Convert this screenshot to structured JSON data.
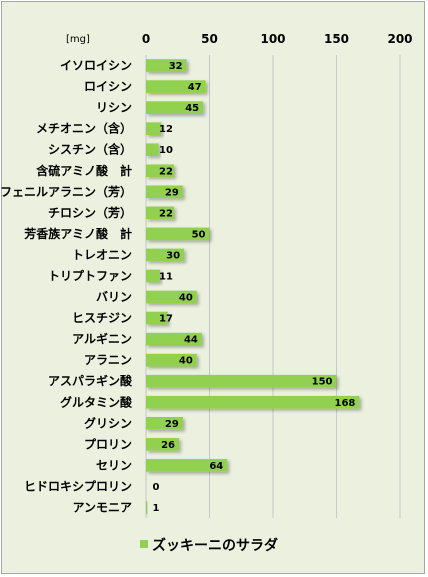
{
  "chart_data": {
    "type": "bar",
    "orientation": "horizontal",
    "unit_label": "[mg]",
    "categories": [
      "イソロイシン",
      "ロイシン",
      "リシン",
      "メチオニン（含）",
      "シスチン（含）",
      "含硫アミノ酸　計",
      "フェニルアラニン（芳）",
      "チロシン（芳）",
      "芳香族アミノ酸　計",
      "トレオニン",
      "トリプトファン",
      "バリン",
      "ヒスチジン",
      "アルギニン",
      "アラニン",
      "アスパラギン酸",
      "グルタミン酸",
      "グリシン",
      "プロリン",
      "セリン",
      "ヒドロキシプロリン",
      "アンモニア"
    ],
    "series": [
      {
        "name": "ズッキーニのサラダ",
        "values": [
          32,
          47,
          45,
          12,
          10,
          22,
          29,
          22,
          50,
          30,
          11,
          40,
          17,
          44,
          40,
          150,
          168,
          29,
          26,
          64,
          0,
          1
        ]
      }
    ],
    "xlim": [
      0,
      200
    ],
    "xticks": [
      0,
      50,
      100,
      150,
      200
    ],
    "grid": true,
    "legend": "bottom",
    "colors": {
      "bar": "#92d050",
      "background": "#ebf1de",
      "grid": "#c8c8c8",
      "border": "#a6a6a6"
    }
  }
}
